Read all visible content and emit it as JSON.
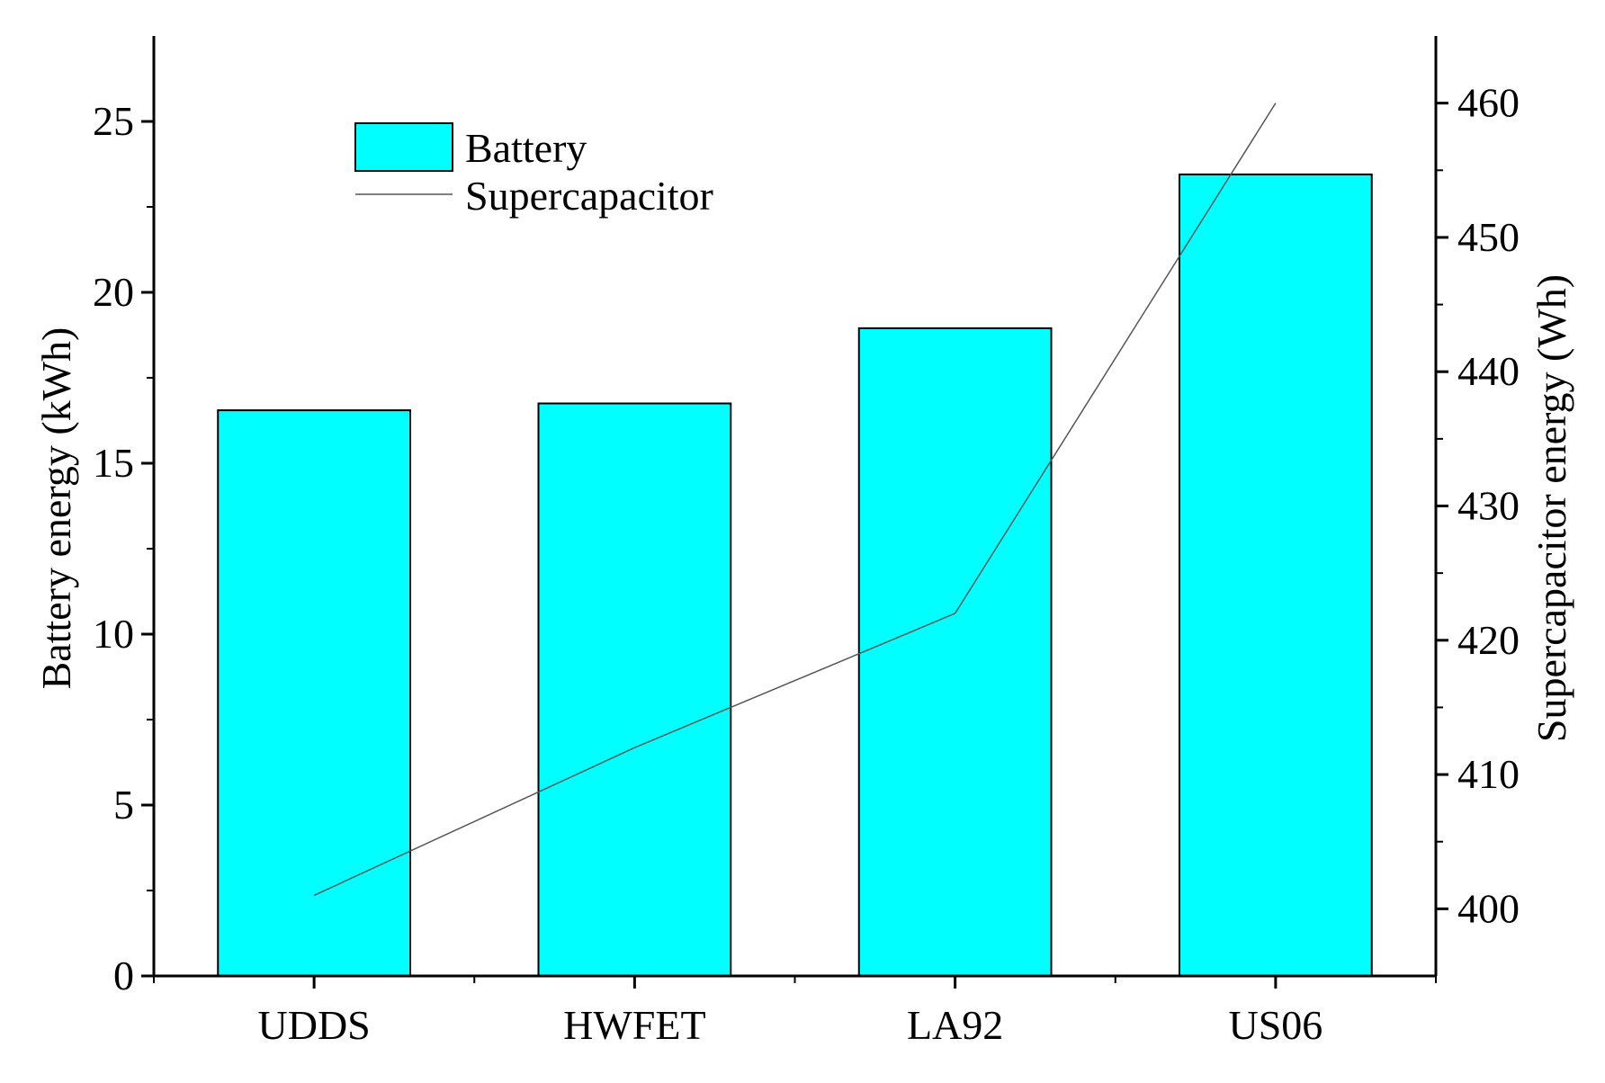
{
  "chart_data": {
    "type": "bar",
    "categories": [
      "UDDS",
      "HWFET",
      "LA92",
      "US06"
    ],
    "series": [
      {
        "name": "Battery",
        "type": "bar",
        "axis": "left",
        "values": [
          16.55,
          16.75,
          18.95,
          23.45
        ],
        "color": "#00ffff"
      },
      {
        "name": "Supercapacitor",
        "type": "line",
        "axis": "right",
        "values": [
          401,
          412,
          422,
          460
        ],
        "color": "#555555"
      }
    ],
    "ylabel": "Battery energy (kWh)",
    "y2label": "Supercapacitor energy (Wh)",
    "ylim": [
      0,
      27.5
    ],
    "y2lim": [
      395,
      465
    ],
    "yticks": [
      "0",
      "5",
      "10",
      "15",
      "20",
      "25"
    ],
    "y2ticks": [
      "400",
      "410",
      "420",
      "430",
      "440",
      "450",
      "460"
    ],
    "legend_position": "top-left",
    "grid": false
  }
}
